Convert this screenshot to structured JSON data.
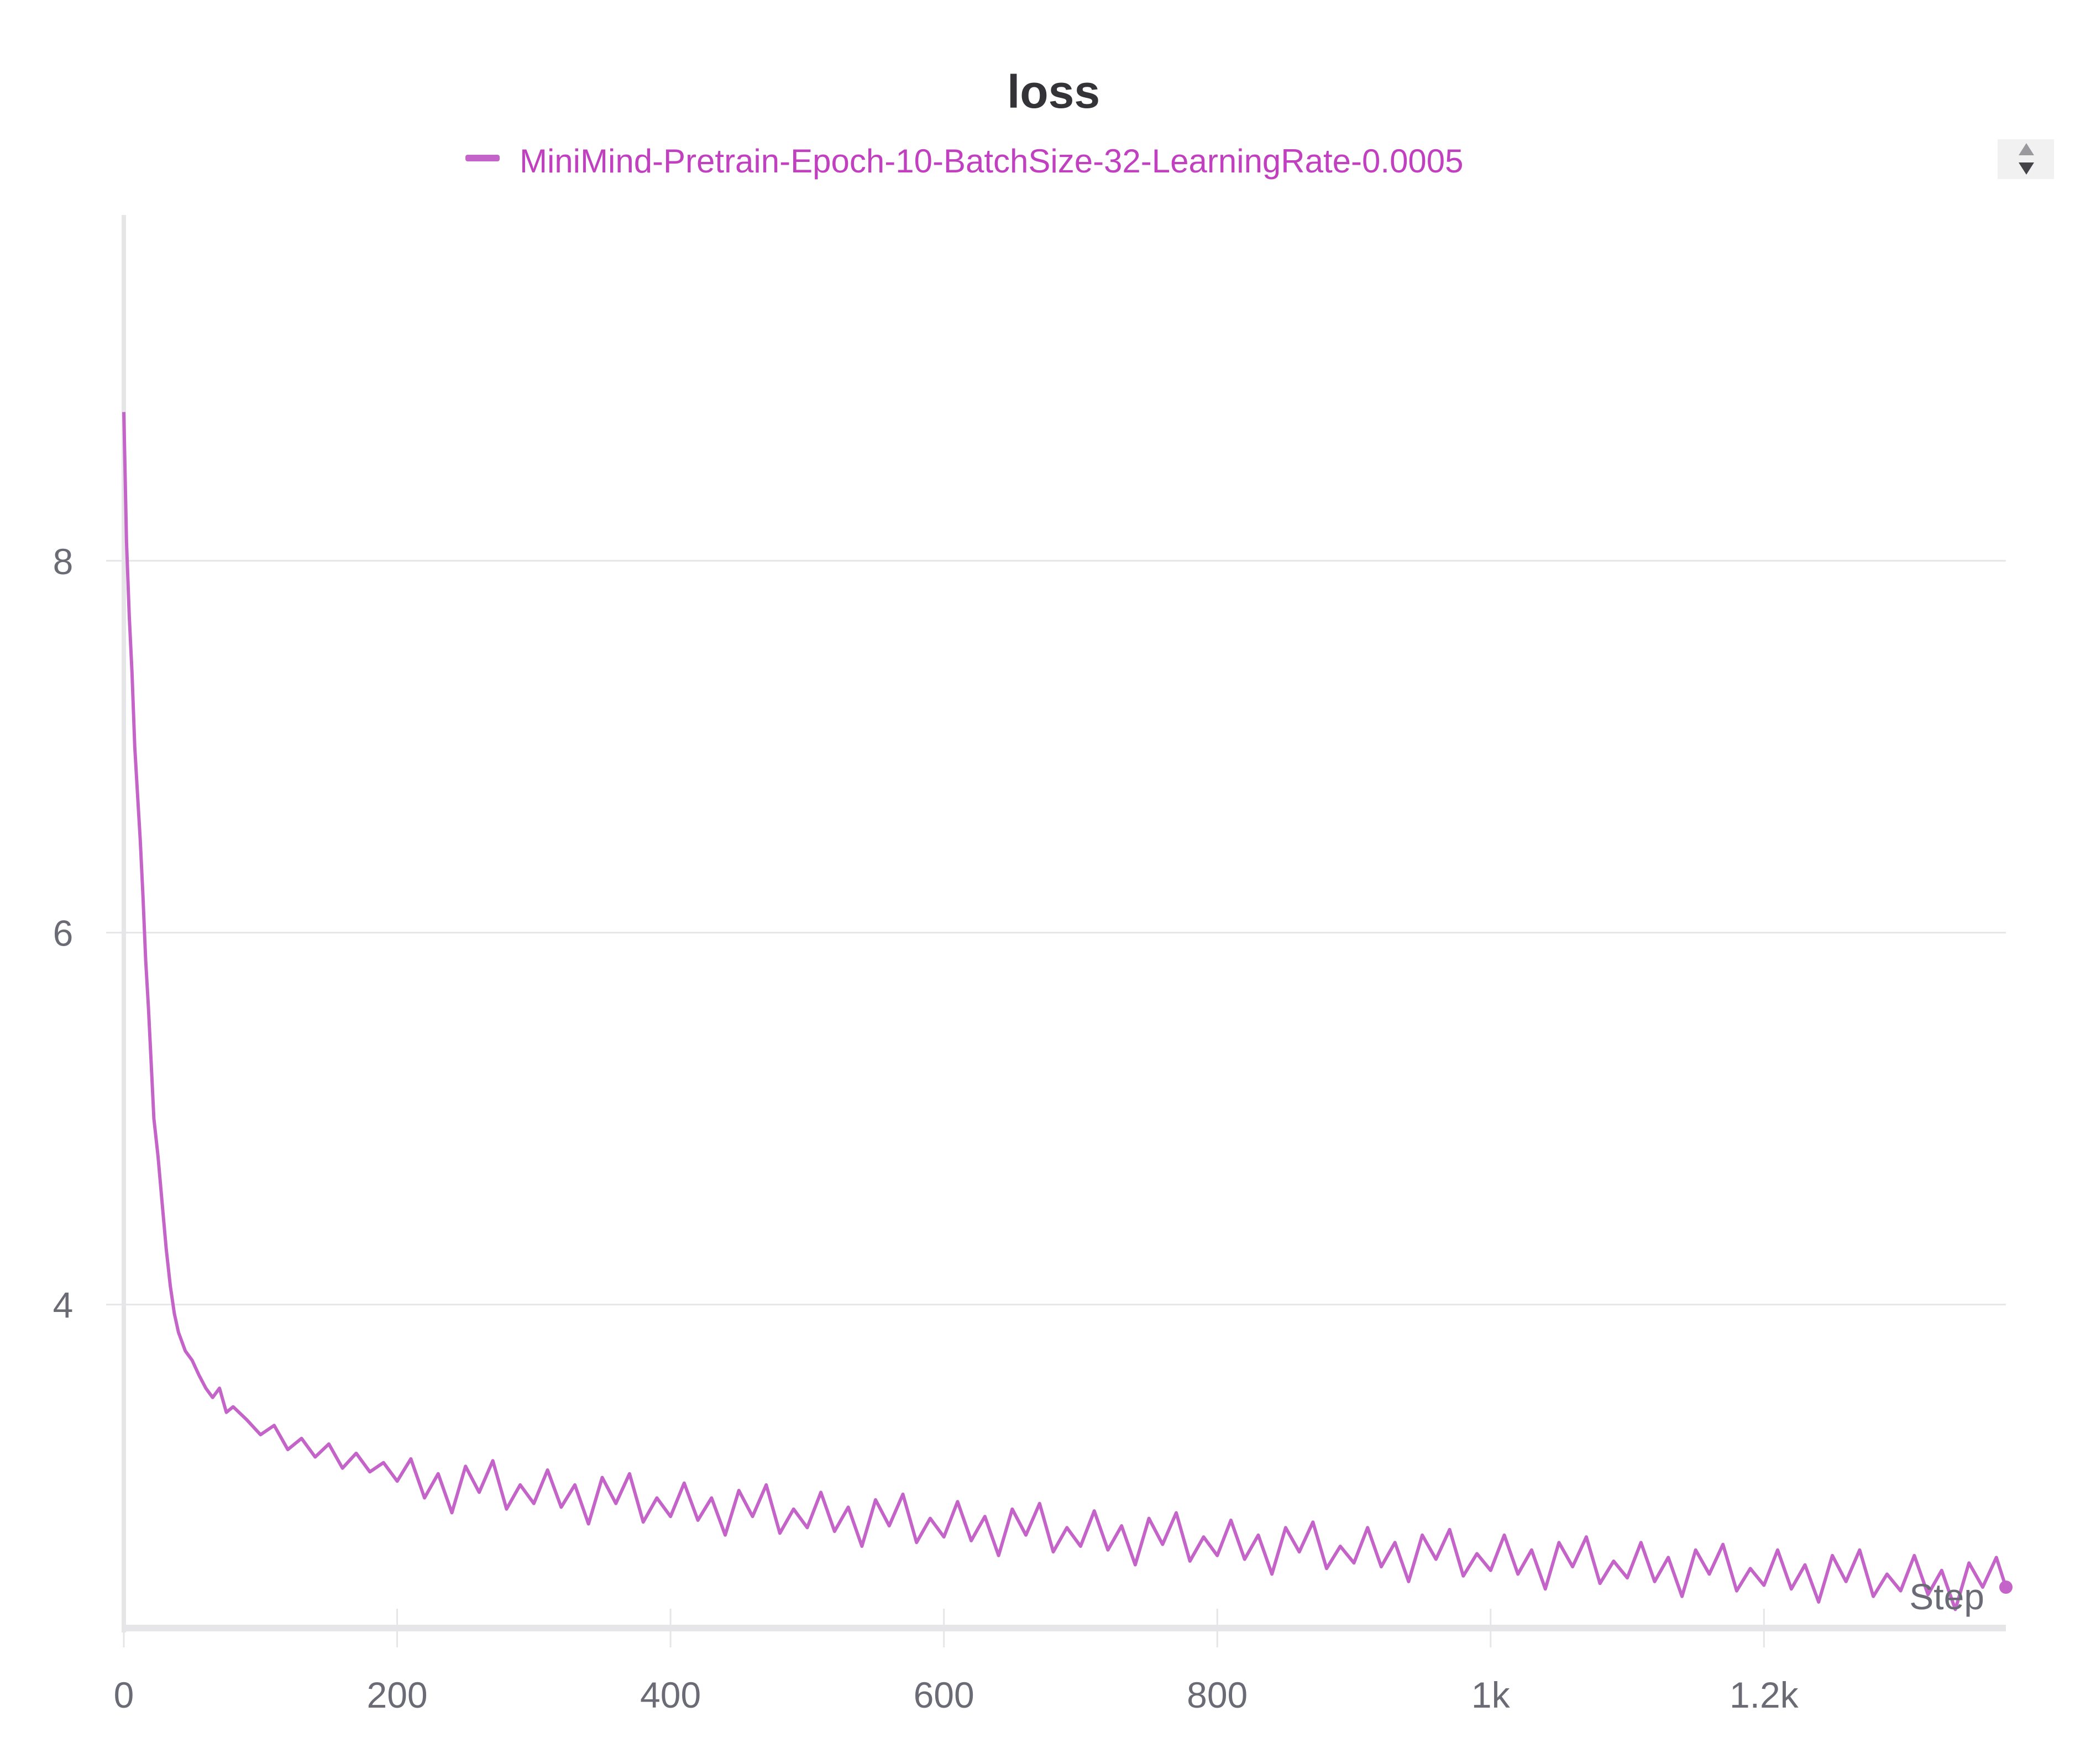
{
  "chart_data": {
    "type": "line",
    "title": "loss",
    "xlabel": "Step",
    "ylabel": "",
    "xlim": [
      0,
      1377
    ],
    "ylim": [
      2.26,
      9.86
    ],
    "x_ticks": [
      0,
      200,
      400,
      600,
      800,
      1000,
      1200
    ],
    "x_tick_labels": [
      "0",
      "200",
      "400",
      "600",
      "800",
      "1k",
      "1.2k"
    ],
    "y_ticks": [
      4,
      6,
      8
    ],
    "y_tick_labels": [
      "4",
      "6",
      "8"
    ],
    "grid": true,
    "legend_position": "top",
    "series": [
      {
        "name": "MiniMind-Pretrain-Epoch-10-BatchSize-32-LearningRate-0.0005",
        "color": "#c564c8",
        "points": [
          [
            0,
            8.8
          ],
          [
            2,
            8.1
          ],
          [
            4,
            7.7
          ],
          [
            6,
            7.4
          ],
          [
            8,
            7.0
          ],
          [
            10,
            6.75
          ],
          [
            12,
            6.5
          ],
          [
            14,
            6.2
          ],
          [
            16,
            5.85
          ],
          [
            18,
            5.6
          ],
          [
            20,
            5.3
          ],
          [
            22,
            5.0
          ],
          [
            25,
            4.8
          ],
          [
            28,
            4.55
          ],
          [
            31,
            4.3
          ],
          [
            34,
            4.1
          ],
          [
            37,
            3.95
          ],
          [
            40,
            3.85
          ],
          [
            45,
            3.75
          ],
          [
            50,
            3.7
          ],
          [
            55,
            3.62
          ],
          [
            60,
            3.55
          ],
          [
            65,
            3.5
          ],
          [
            70,
            3.55
          ],
          [
            75,
            3.42
          ],
          [
            80,
            3.45
          ],
          [
            90,
            3.38
          ],
          [
            100,
            3.3
          ],
          [
            110,
            3.35
          ],
          [
            120,
            3.22
          ],
          [
            130,
            3.28
          ],
          [
            140,
            3.18
          ],
          [
            150,
            3.25
          ],
          [
            160,
            3.12
          ],
          [
            170,
            3.2
          ],
          [
            180,
            3.1
          ],
          [
            190,
            3.15
          ],
          [
            200,
            3.05
          ],
          [
            210,
            3.17
          ],
          [
            220,
            2.96
          ],
          [
            230,
            3.09
          ],
          [
            240,
            2.88
          ],
          [
            250,
            3.13
          ],
          [
            260,
            2.99
          ],
          [
            270,
            3.16
          ],
          [
            280,
            2.9
          ],
          [
            290,
            3.03
          ],
          [
            300,
            2.93
          ],
          [
            310,
            3.11
          ],
          [
            320,
            2.91
          ],
          [
            330,
            3.03
          ],
          [
            340,
            2.82
          ],
          [
            350,
            3.07
          ],
          [
            360,
            2.93
          ],
          [
            370,
            3.09
          ],
          [
            380,
            2.83
          ],
          [
            390,
            2.96
          ],
          [
            400,
            2.86
          ],
          [
            410,
            3.04
          ],
          [
            420,
            2.84
          ],
          [
            430,
            2.96
          ],
          [
            440,
            2.76
          ],
          [
            450,
            3.0
          ],
          [
            460,
            2.86
          ],
          [
            470,
            3.03
          ],
          [
            480,
            2.77
          ],
          [
            490,
            2.9
          ],
          [
            500,
            2.8
          ],
          [
            510,
            2.99
          ],
          [
            520,
            2.78
          ],
          [
            530,
            2.91
          ],
          [
            540,
            2.7
          ],
          [
            550,
            2.95
          ],
          [
            560,
            2.81
          ],
          [
            570,
            2.98
          ],
          [
            580,
            2.72
          ],
          [
            590,
            2.85
          ],
          [
            600,
            2.75
          ],
          [
            610,
            2.94
          ],
          [
            620,
            2.73
          ],
          [
            630,
            2.86
          ],
          [
            640,
            2.65
          ],
          [
            650,
            2.9
          ],
          [
            660,
            2.76
          ],
          [
            670,
            2.93
          ],
          [
            680,
            2.67
          ],
          [
            690,
            2.8
          ],
          [
            700,
            2.7
          ],
          [
            710,
            2.89
          ],
          [
            720,
            2.68
          ],
          [
            730,
            2.81
          ],
          [
            740,
            2.6
          ],
          [
            750,
            2.85
          ],
          [
            760,
            2.71
          ],
          [
            770,
            2.88
          ],
          [
            780,
            2.62
          ],
          [
            790,
            2.75
          ],
          [
            800,
            2.65
          ],
          [
            810,
            2.84
          ],
          [
            820,
            2.63
          ],
          [
            830,
            2.76
          ],
          [
            840,
            2.55
          ],
          [
            850,
            2.8
          ],
          [
            860,
            2.67
          ],
          [
            870,
            2.83
          ],
          [
            880,
            2.58
          ],
          [
            890,
            2.7
          ],
          [
            900,
            2.61
          ],
          [
            910,
            2.8
          ],
          [
            920,
            2.59
          ],
          [
            930,
            2.72
          ],
          [
            940,
            2.51
          ],
          [
            950,
            2.76
          ],
          [
            960,
            2.63
          ],
          [
            970,
            2.79
          ],
          [
            980,
            2.54
          ],
          [
            990,
            2.66
          ],
          [
            1000,
            2.57
          ],
          [
            1010,
            2.76
          ],
          [
            1020,
            2.55
          ],
          [
            1030,
            2.68
          ],
          [
            1040,
            2.47
          ],
          [
            1050,
            2.72
          ],
          [
            1060,
            2.59
          ],
          [
            1070,
            2.75
          ],
          [
            1080,
            2.5
          ],
          [
            1090,
            2.62
          ],
          [
            1100,
            2.53
          ],
          [
            1110,
            2.72
          ],
          [
            1120,
            2.51
          ],
          [
            1130,
            2.64
          ],
          [
            1140,
            2.43
          ],
          [
            1150,
            2.68
          ],
          [
            1160,
            2.55
          ],
          [
            1170,
            2.71
          ],
          [
            1180,
            2.46
          ],
          [
            1190,
            2.58
          ],
          [
            1200,
            2.49
          ],
          [
            1210,
            2.68
          ],
          [
            1220,
            2.47
          ],
          [
            1230,
            2.6
          ],
          [
            1240,
            2.4
          ],
          [
            1250,
            2.65
          ],
          [
            1260,
            2.51
          ],
          [
            1270,
            2.68
          ],
          [
            1280,
            2.43
          ],
          [
            1290,
            2.55
          ],
          [
            1300,
            2.46
          ],
          [
            1310,
            2.65
          ],
          [
            1320,
            2.44
          ],
          [
            1330,
            2.57
          ],
          [
            1340,
            2.36
          ],
          [
            1350,
            2.61
          ],
          [
            1360,
            2.48
          ],
          [
            1370,
            2.64
          ],
          [
            1377,
            2.48
          ]
        ]
      }
    ]
  },
  "colors": {
    "series": "#c564c8",
    "legend_text": "#c040c0",
    "title": "#333338",
    "tick_text": "#6b6b76",
    "grid": "#e6e6e8"
  },
  "legend_scroll": {
    "up_icon": "triangle-up",
    "down_icon": "triangle-down"
  }
}
